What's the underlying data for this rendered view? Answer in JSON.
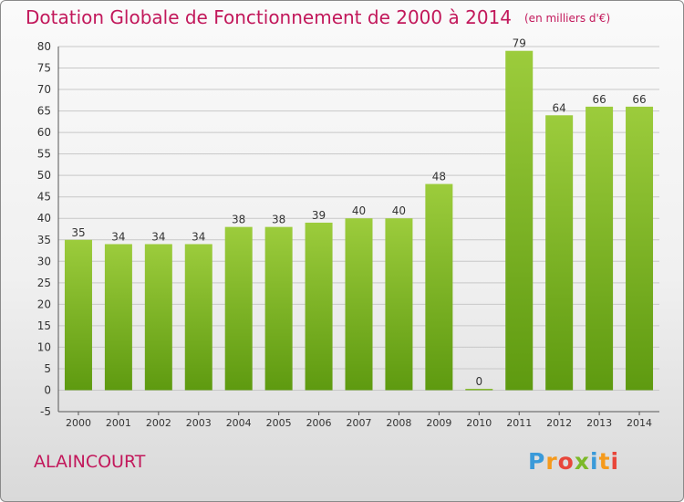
{
  "header": {
    "title": "Dotation Globale de Fonctionnement de 2000 à 2014",
    "unit": "(en milliers d'€)"
  },
  "footer": {
    "place": "ALAINCOURT",
    "logo_letters": [
      "P",
      "r",
      "o",
      "x",
      "i",
      "t",
      "i"
    ],
    "logo_colors": [
      "#3a9ad9",
      "#f59a1c",
      "#e8463a",
      "#7cb928",
      "#3a9ad9",
      "#f59a1c",
      "#e8463a"
    ]
  },
  "colors": {
    "accent": "#c2185b",
    "bar_top": "#9ccc3c",
    "bar_bottom": "#5e9a10"
  },
  "chart_data": {
    "type": "bar",
    "categories": [
      "2000",
      "2001",
      "2002",
      "2003",
      "2004",
      "2005",
      "2006",
      "2007",
      "2008",
      "2009",
      "2010",
      "2011",
      "2012",
      "2013",
      "2014"
    ],
    "values": [
      35,
      34,
      34,
      34,
      38,
      38,
      39,
      40,
      40,
      48,
      0,
      79,
      64,
      66,
      66
    ],
    "title": "Dotation Globale de Fonctionnement de 2000 à 2014",
    "subtitle": "(en milliers d'€)",
    "xlabel": "",
    "ylabel": "",
    "ylim": [
      -5,
      80
    ],
    "yticks": [
      -5,
      0,
      5,
      10,
      15,
      20,
      25,
      30,
      35,
      40,
      45,
      50,
      55,
      60,
      65,
      70,
      75,
      80
    ],
    "grid": true
  }
}
